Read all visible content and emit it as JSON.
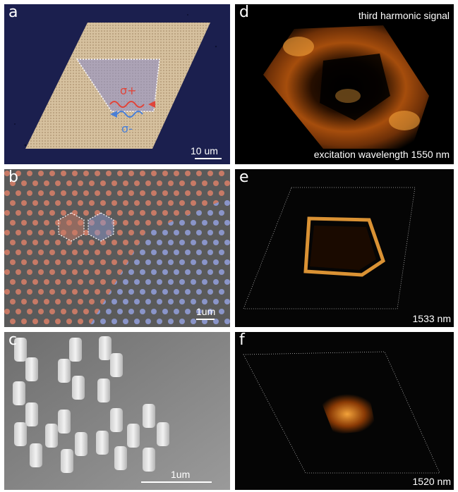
{
  "panels": {
    "a": {
      "label": "a",
      "scalebar": "10 um",
      "sigma_plus": "σ+",
      "sigma_minus": "σ-",
      "colors": {
        "background": "#1b1f4e",
        "flake": "#d8c3a3",
        "selection": "#8f8fc6",
        "plus": "#e0453a",
        "minus": "#4a7fd6"
      }
    },
    "b": {
      "label": "b",
      "scalebar": "1um",
      "colors": {
        "red_pillars": "#c77a66",
        "blue_pillars": "#8a95c9"
      }
    },
    "c": {
      "label": "c",
      "scalebar": "1um"
    },
    "d": {
      "label": "d",
      "title": "third harmonic signal",
      "caption": "excitation wavelength 1550 nm",
      "colors": {
        "signal": "#f2a23a",
        "background": "#000000"
      }
    },
    "e": {
      "label": "e",
      "caption": "1533 nm"
    },
    "f": {
      "label": "f",
      "caption": "1520 nm"
    }
  }
}
